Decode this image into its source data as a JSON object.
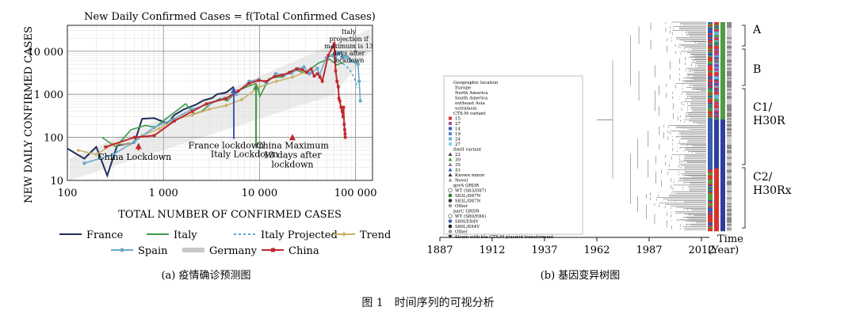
{
  "caption": "图 1　时间序列的可视分析",
  "panel_a": {
    "caption": "(a) 疫情确诊预测图",
    "chart_data": {
      "type": "line",
      "title": "New Daily Confirmed Cases = f(Total Confirmed Cases)",
      "xlabel": "TOTAL NUMBER OF CONFIRMED CASES",
      "ylabel": "NEW DAILY CONFIRMED CASES",
      "xscale": "log",
      "yscale": "log",
      "xlim": [
        100,
        150000
      ],
      "ylim": [
        10,
        40000
      ],
      "xticks": [
        {
          "v": 100,
          "label": "100"
        },
        {
          "v": 1000,
          "label": "1 000"
        },
        {
          "v": 10000,
          "label": "10 000"
        },
        {
          "v": 100000,
          "label": "100 000"
        }
      ],
      "yticks": [
        {
          "v": 10,
          "label": "10"
        },
        {
          "v": 100,
          "label": "100"
        },
        {
          "v": 1000,
          "label": "1 000"
        },
        {
          "v": 10000,
          "label": "10 000"
        }
      ],
      "grid": true,
      "legend_position": "bottom",
      "series": [
        {
          "name": "France",
          "color": "#1f2d5c",
          "dash": "none",
          "marker": "none",
          "x": [
            100,
            150,
            200,
            260,
            330,
            500,
            600,
            800,
            1100,
            1300,
            1600,
            2200,
            2600,
            3200,
            3600,
            4500,
            5400
          ],
          "y": [
            55,
            32,
            60,
            13,
            65,
            75,
            270,
            280,
            210,
            330,
            440,
            580,
            720,
            820,
            1000,
            1100,
            1500
          ]
        },
        {
          "name": "Italy",
          "color": "#3c9a48",
          "dash": "none",
          "marker": "none",
          "x": [
            230,
            320,
            460,
            650,
            820,
            1130,
            1700,
            2100,
            2500,
            3100,
            3900,
            4600,
            5900,
            7400,
            9200,
            10100,
            12500,
            15100,
            17600,
            21100,
            24700,
            27900,
            31500,
            35700,
            41000,
            47000,
            53600,
            59000,
            63900,
            69200,
            74400
          ],
          "y": [
            100,
            60,
            150,
            190,
            170,
            300,
            600,
            350,
            400,
            600,
            800,
            700,
            1200,
            1500,
            1800,
            900,
            2300,
            2500,
            2500,
            3500,
            3600,
            3200,
            3500,
            4200,
            5300,
            6000,
            6500,
            5500,
            4800,
            5200,
            5200
          ]
        },
        {
          "name": "Italy Projected",
          "color": "#5aa7cc",
          "dash": "3,3",
          "marker": "none",
          "x": [
            74000,
            80000,
            86000,
            92000,
            98000,
            105000
          ],
          "y": [
            5200,
            4500,
            3800,
            3000,
            2200,
            1400
          ]
        },
        {
          "name": "Trend",
          "color": "#c9b26b",
          "dash": "none",
          "marker": "diamond",
          "x": [
            130,
            200,
            300,
            450,
            600,
            900,
            1300,
            2000,
            3000,
            4500,
            6500,
            10000,
            15000,
            22000,
            30000
          ],
          "y": [
            50,
            40,
            70,
            70,
            110,
            160,
            260,
            330,
            450,
            550,
            750,
            1500,
            2000,
            2500,
            3300
          ]
        },
        {
          "name": "Spain",
          "color": "#6aa9cc",
          "dash": "none",
          "marker": "circle",
          "x": [
            150,
            300,
            500,
            800,
            1200,
            2000,
            3000,
            4300,
            5700,
            7800,
            9900,
            11800,
            14800,
            18100,
            21600,
            25500,
            29000,
            33000,
            35000,
            40000,
            42000,
            49500,
            57000,
            62000,
            65000,
            70000,
            72000,
            76000,
            82000,
            90000,
            100000,
            106000,
            109000,
            112000
          ],
          "y": [
            25,
            40,
            80,
            170,
            250,
            450,
            600,
            800,
            1000,
            2000,
            2200,
            1800,
            3000,
            2800,
            3100,
            3900,
            4300,
            3000,
            3200,
            4000,
            2800,
            7000,
            8000,
            6500,
            9000,
            9500,
            7200,
            7700,
            7300,
            6000,
            5500,
            5000,
            2000,
            700
          ]
        },
        {
          "name": "Germany",
          "color": "#c8c8c8",
          "dash": "none",
          "marker": "none",
          "x": [],
          "y": []
        },
        {
          "name": "China",
          "color": "#c0272d",
          "dash": "none",
          "marker": "square",
          "x": [
            250,
            500,
            800,
            1300,
            2000,
            2800,
            4500,
            6000,
            7800,
            9800,
            11800,
            14400,
            17200,
            20400,
            24300,
            28000,
            31000,
            34500,
            37100,
            40000,
            42600,
            45000,
            52000,
            59800,
            62000,
            64000,
            66000,
            67000,
            68500,
            70500,
            72500,
            74000,
            75000,
            76000,
            77000,
            77700,
            78000
          ],
          "y": [
            60,
            100,
            110,
            240,
            400,
            600,
            800,
            1200,
            1800,
            2100,
            2000,
            2600,
            2800,
            3200,
            3900,
            3700,
            3200,
            3900,
            2650,
            3000,
            2500,
            2000,
            8000,
            15000,
            3500,
            2000,
            1500,
            800,
            700,
            500,
            400,
            300,
            500,
            200,
            150,
            120,
            100
          ]
        }
      ],
      "annotations": [
        {
          "text": "China Lockdown",
          "x": 500,
          "y": 30,
          "arrow_to": [
            550,
            75
          ]
        },
        {
          "text": "France lockdown",
          "x": 4500,
          "y": 55,
          "arrow_to": [
            5400,
            1500
          ]
        },
        {
          "text": "Italy Lockdown",
          "x": 7000,
          "y": 35,
          "arrow_to": [
            9200,
            1800
          ]
        },
        {
          "text": "China Maximum 13 days after lockdown",
          "x": 22000,
          "y": 55,
          "arrow_to": [
            22000,
            120
          ]
        },
        {
          "text": "Italy projection if maximum is 13 days after lockdown",
          "x": 85000,
          "y": 25000
        }
      ]
    }
  },
  "panel_b": {
    "caption": "(b) 基因变异树图",
    "x_axis_title": "Time (Year)",
    "time_label": "Time",
    "year_label": "(Year)",
    "xticks": [
      1887,
      1912,
      1937,
      1962,
      1987,
      2012
    ],
    "clades": [
      {
        "label_lines": [
          "A"
        ]
      },
      {
        "label_lines": [
          "B"
        ]
      },
      {
        "label_lines": [
          "C1/",
          "H30R"
        ]
      },
      {
        "label_lines": [
          "C2/",
          "H30Rx"
        ]
      }
    ],
    "legend": {
      "sections": [
        {
          "title": "Geographic location",
          "items": [
            {
              "label": "Europe",
              "marker": "none",
              "color": ""
            },
            {
              "label": "North America",
              "marker": "none",
              "color": ""
            },
            {
              "label": "South America",
              "marker": "none",
              "color": ""
            },
            {
              "label": "outheast Asia",
              "marker": "none",
              "color": ""
            },
            {
              "label": "ustralasia",
              "marker": "none",
              "color": ""
            }
          ]
        },
        {
          "title": "CTX-M variant",
          "items": [
            {
              "label": "15",
              "marker": "square",
              "color": "#d8322a"
            },
            {
              "label": "27",
              "marker": "square",
              "color": "#a34f9c"
            },
            {
              "label": "14",
              "marker": "square",
              "color": "#3a5ab5"
            },
            {
              "label": "19",
              "marker": "square",
              "color": "#5c84c8"
            },
            {
              "label": "24",
              "marker": "square",
              "color": "#64b6d8"
            },
            {
              "label": "27",
              "marker": "square",
              "color": "#8fd0e8"
            }
          ]
        },
        {
          "title": "fimH variant",
          "items": [
            {
              "label": "22",
              "marker": "triangle",
              "color": "#444"
            },
            {
              "label": "30",
              "marker": "triangle",
              "color": "#4e9b45"
            },
            {
              "label": "35",
              "marker": "triangle",
              "color": "#777"
            },
            {
              "label": "41",
              "marker": "triangle",
              "color": "#3a5ab5"
            },
            {
              "label": "Known minor",
              "marker": "triangle",
              "color": "#333"
            },
            {
              "label": "Novel",
              "marker": "triangle",
              "color": "#999"
            }
          ]
        },
        {
          "title": "gyrA QRDR",
          "items": [
            {
              "label": "WT (S83/D87)",
              "marker": "circle-open",
              "color": "#333"
            },
            {
              "label": "S83L/D87N",
              "marker": "circle",
              "color": "#2e7d32"
            },
            {
              "label": "S83L/D87N",
              "marker": "circle",
              "color": "#333"
            },
            {
              "label": "Other",
              "marker": "circle",
              "color": "#999"
            }
          ]
        },
        {
          "title": "parC QRDR",
          "items": [
            {
              "label": "WT (S80/E84)",
              "marker": "circle-open",
              "color": "#333"
            },
            {
              "label": "S80I/E84V",
              "marker": "circle",
              "color": "#3a5ab5"
            },
            {
              "label": "S80L/E84V",
              "marker": "circle",
              "color": "#222"
            },
            {
              "label": "Other",
              "marker": "circle",
              "color": "#999"
            }
          ]
        },
        {
          "title": "",
          "items": [
            {
              "label": "Strain with bla CTX-M plasmid transformant",
              "marker": "tri-down",
              "color": "#222"
            }
          ]
        }
      ]
    }
  }
}
